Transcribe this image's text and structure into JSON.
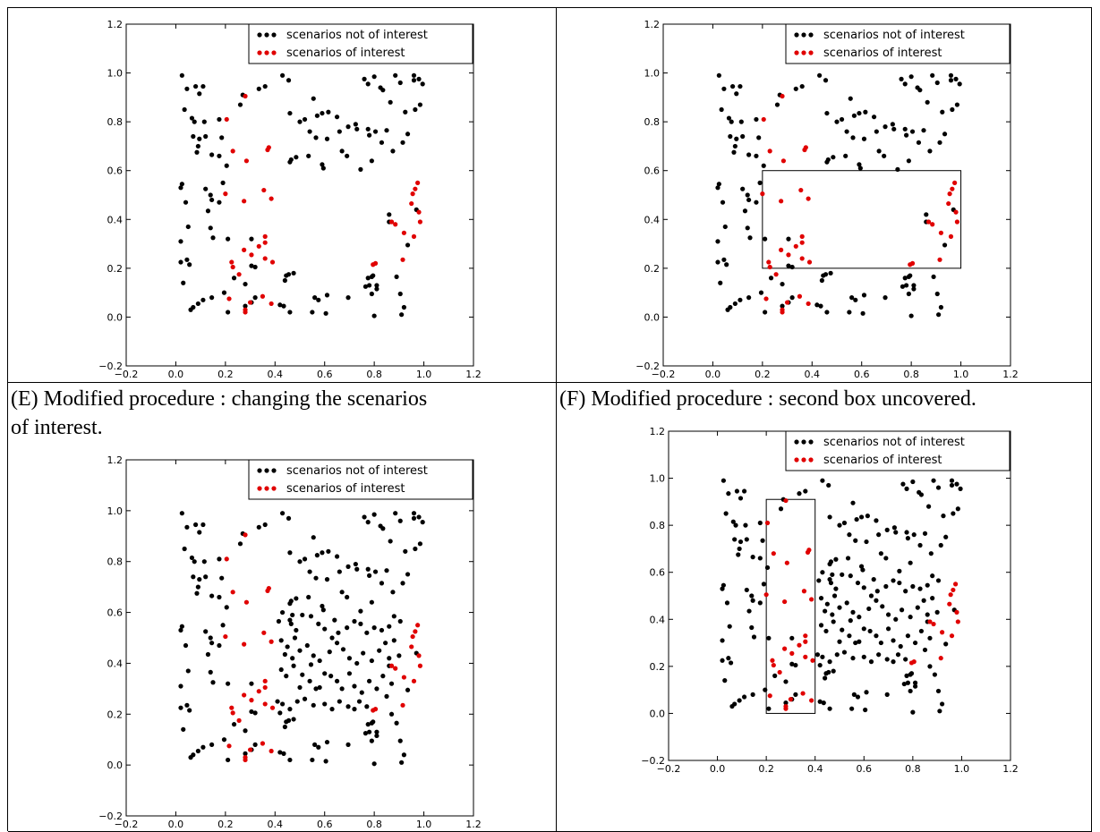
{
  "captions": {
    "e": [
      "(E) Modified procedure : changing the scenarios",
      "of interest."
    ],
    "f": "(F) Modified procedure : second box uncovered."
  },
  "legend": {
    "not_interest": "scenarios not of interest",
    "interest": "scenarios of interest"
  },
  "colors": {
    "not_interest": "#000000",
    "interest": "#e00000"
  },
  "ticks": {
    "x": [
      "−0.2",
      "0.0",
      "0.2",
      "0.4",
      "0.6",
      "0.8",
      "1.0",
      "1.2"
    ],
    "y": [
      "−0.2",
      "0.0",
      "0.2",
      "0.4",
      "0.6",
      "0.8",
      "1.0",
      "1.2"
    ]
  },
  "chart_data": [
    {
      "type": "scatter",
      "panel": "top-left",
      "xlim": [
        -0.2,
        1.2
      ],
      "ylim": [
        -0.2,
        1.2
      ],
      "legend_position": "top-right",
      "points": "plain",
      "boxes": []
    },
    {
      "type": "scatter",
      "panel": "top-right",
      "xlim": [
        -0.2,
        1.2
      ],
      "ylim": [
        -0.2,
        1.2
      ],
      "legend_position": "top-right",
      "points": "plain",
      "boxes": [
        {
          "x0": 0.2,
          "x1": 1.0,
          "y0": 0.2,
          "y1": 0.6
        }
      ]
    },
    {
      "type": "scatter",
      "panel": "E",
      "xlim": [
        -0.2,
        1.2
      ],
      "ylim": [
        -0.2,
        1.2
      ],
      "legend_position": "top-right",
      "points": "full",
      "boxes": []
    },
    {
      "type": "scatter",
      "panel": "F",
      "xlim": [
        -0.2,
        1.2
      ],
      "ylim": [
        -0.2,
        1.2
      ],
      "legend_position": "top-right",
      "points": "full",
      "boxes": [
        {
          "x0": 0.2,
          "x1": 0.4,
          "y0": 0.0,
          "y1": 0.91
        }
      ]
    }
  ],
  "point_sets": {
    "interest": [
      [
        0.28,
        0.905
      ],
      [
        0.205,
        0.81
      ],
      [
        0.23,
        0.68
      ],
      [
        0.285,
        0.64
      ],
      [
        0.375,
        0.695
      ],
      [
        0.37,
        0.685
      ],
      [
        0.2,
        0.505
      ],
      [
        0.275,
        0.475
      ],
      [
        0.355,
        0.52
      ],
      [
        0.385,
        0.485
      ],
      [
        0.975,
        0.55
      ],
      [
        0.965,
        0.525
      ],
      [
        0.955,
        0.505
      ],
      [
        0.95,
        0.465
      ],
      [
        0.98,
        0.43
      ],
      [
        0.985,
        0.39
      ],
      [
        0.885,
        0.38
      ],
      [
        0.87,
        0.39
      ],
      [
        0.96,
        0.33
      ],
      [
        0.92,
        0.345
      ],
      [
        0.36,
        0.33
      ],
      [
        0.36,
        0.305
      ],
      [
        0.335,
        0.29
      ],
      [
        0.275,
        0.275
      ],
      [
        0.305,
        0.255
      ],
      [
        0.36,
        0.24
      ],
      [
        0.39,
        0.225
      ],
      [
        0.225,
        0.225
      ],
      [
        0.23,
        0.205
      ],
      [
        0.805,
        0.22
      ],
      [
        0.795,
        0.215
      ],
      [
        0.915,
        0.235
      ],
      [
        0.255,
        0.175
      ],
      [
        0.215,
        0.075
      ],
      [
        0.35,
        0.085
      ],
      [
        0.385,
        0.055
      ],
      [
        0.28,
        0.02
      ],
      [
        0.3,
        0.06
      ],
      [
        0.28,
        0.03
      ]
    ],
    "plain": [
      [
        0.025,
        0.99
      ],
      [
        0.045,
        0.935
      ],
      [
        0.08,
        0.945
      ],
      [
        0.11,
        0.945
      ],
      [
        0.095,
        0.915
      ],
      [
        0.035,
        0.85
      ],
      [
        0.065,
        0.815
      ],
      [
        0.075,
        0.8
      ],
      [
        0.115,
        0.8
      ],
      [
        0.175,
        0.81
      ],
      [
        0.07,
        0.74
      ],
      [
        0.095,
        0.73
      ],
      [
        0.12,
        0.74
      ],
      [
        0.185,
        0.735
      ],
      [
        0.09,
        0.7
      ],
      [
        0.085,
        0.675
      ],
      [
        0.145,
        0.665
      ],
      [
        0.175,
        0.66
      ],
      [
        0.205,
        0.62
      ],
      [
        0.19,
        0.55
      ],
      [
        0.025,
        0.545
      ],
      [
        0.02,
        0.53
      ],
      [
        0.04,
        0.47
      ],
      [
        0.12,
        0.525
      ],
      [
        0.14,
        0.5
      ],
      [
        0.145,
        0.48
      ],
      [
        0.175,
        0.47
      ],
      [
        0.13,
        0.435
      ],
      [
        0.05,
        0.37
      ],
      [
        0.14,
        0.365
      ],
      [
        0.15,
        0.325
      ],
      [
        0.02,
        0.31
      ],
      [
        0.02,
        0.225
      ],
      [
        0.045,
        0.235
      ],
      [
        0.055,
        0.215
      ],
      [
        0.03,
        0.14
      ],
      [
        0.21,
        0.32
      ],
      [
        0.305,
        0.32
      ],
      [
        0.305,
        0.21
      ],
      [
        0.235,
        0.16
      ],
      [
        0.28,
        0.135
      ],
      [
        0.195,
        0.1
      ],
      [
        0.145,
        0.08
      ],
      [
        0.11,
        0.07
      ],
      [
        0.06,
        0.03
      ],
      [
        0.07,
        0.04
      ],
      [
        0.09,
        0.055
      ],
      [
        0.305,
        0.06
      ],
      [
        0.32,
        0.08
      ],
      [
        0.28,
        0.045
      ],
      [
        0.21,
        0.02
      ],
      [
        0.32,
        0.205
      ],
      [
        0.26,
        0.87
      ],
      [
        0.27,
        0.91
      ],
      [
        0.335,
        0.935
      ],
      [
        0.36,
        0.945
      ],
      [
        0.43,
        0.99
      ],
      [
        0.455,
        0.97
      ],
      [
        0.46,
        0.835
      ],
      [
        0.5,
        0.8
      ],
      [
        0.52,
        0.81
      ],
      [
        0.54,
        0.76
      ],
      [
        0.565,
        0.735
      ],
      [
        0.59,
        0.835
      ],
      [
        0.615,
        0.84
      ],
      [
        0.555,
        0.895
      ],
      [
        0.57,
        0.825
      ],
      [
        0.695,
        0.78
      ],
      [
        0.73,
        0.77
      ],
      [
        0.775,
        0.77
      ],
      [
        0.78,
        0.745
      ],
      [
        0.805,
        0.76
      ],
      [
        0.85,
        0.765
      ],
      [
        0.865,
        0.88
      ],
      [
        0.76,
        0.975
      ],
      [
        0.775,
        0.955
      ],
      [
        0.8,
        0.985
      ],
      [
        0.825,
        0.94
      ],
      [
        0.835,
        0.93
      ],
      [
        0.885,
        0.99
      ],
      [
        0.905,
        0.96
      ],
      [
        0.925,
        0.84
      ],
      [
        0.96,
        0.97
      ],
      [
        0.96,
        0.99
      ],
      [
        0.98,
        0.975
      ],
      [
        0.995,
        0.955
      ],
      [
        0.985,
        0.87
      ],
      [
        0.965,
        0.85
      ],
      [
        0.935,
        0.75
      ],
      [
        0.915,
        0.715
      ],
      [
        0.875,
        0.68
      ],
      [
        0.83,
        0.715
      ],
      [
        0.79,
        0.64
      ],
      [
        0.745,
        0.605
      ],
      [
        0.67,
        0.68
      ],
      [
        0.66,
        0.76
      ],
      [
        0.61,
        0.73
      ],
      [
        0.595,
        0.61
      ],
      [
        0.59,
        0.625
      ],
      [
        0.535,
        0.66
      ],
      [
        0.485,
        0.655
      ],
      [
        0.465,
        0.645
      ],
      [
        0.46,
        0.635
      ],
      [
        0.65,
        0.82
      ],
      [
        0.69,
        0.66
      ],
      [
        0.725,
        0.79
      ],
      [
        0.44,
        0.15
      ],
      [
        0.455,
        0.175
      ],
      [
        0.445,
        0.17
      ],
      [
        0.475,
        0.18
      ],
      [
        0.46,
        0.02
      ],
      [
        0.42,
        0.05
      ],
      [
        0.575,
        0.07
      ],
      [
        0.56,
        0.08
      ],
      [
        0.61,
        0.09
      ],
      [
        0.55,
        0.02
      ],
      [
        0.605,
        0.015
      ],
      [
        0.695,
        0.08
      ],
      [
        0.775,
        0.16
      ],
      [
        0.78,
        0.13
      ],
      [
        0.79,
        0.165
      ],
      [
        0.81,
        0.13
      ],
      [
        0.81,
        0.115
      ],
      [
        0.79,
        0.095
      ],
      [
        0.8,
        0.005
      ],
      [
        0.86,
        0.42
      ],
      [
        0.86,
        0.39
      ],
      [
        0.905,
        0.095
      ],
      [
        0.92,
        0.04
      ],
      [
        0.91,
        0.01
      ],
      [
        0.89,
        0.165
      ],
      [
        0.935,
        0.295
      ],
      [
        0.97,
        0.44
      ],
      [
        0.765,
        0.125
      ],
      [
        0.795,
        0.17
      ],
      [
        0.435,
        0.045
      ]
    ],
    "extra": [
      [
        0.415,
        0.565
      ],
      [
        0.43,
        0.6
      ],
      [
        0.46,
        0.57
      ],
      [
        0.465,
        0.555
      ],
      [
        0.485,
        0.53
      ],
      [
        0.48,
        0.5
      ],
      [
        0.51,
        0.59
      ],
      [
        0.545,
        0.585
      ],
      [
        0.575,
        0.555
      ],
      [
        0.6,
        0.535
      ],
      [
        0.64,
        0.57
      ],
      [
        0.655,
        0.52
      ],
      [
        0.69,
        0.54
      ],
      [
        0.72,
        0.565
      ],
      [
        0.745,
        0.555
      ],
      [
        0.77,
        0.52
      ],
      [
        0.8,
        0.54
      ],
      [
        0.83,
        0.53
      ],
      [
        0.86,
        0.545
      ],
      [
        0.88,
        0.585
      ],
      [
        0.905,
        0.565
      ],
      [
        0.425,
        0.49
      ],
      [
        0.45,
        0.465
      ],
      [
        0.44,
        0.435
      ],
      [
        0.47,
        0.42
      ],
      [
        0.5,
        0.45
      ],
      [
        0.53,
        0.47
      ],
      [
        0.555,
        0.43
      ],
      [
        0.58,
        0.41
      ],
      [
        0.62,
        0.445
      ],
      [
        0.65,
        0.48
      ],
      [
        0.675,
        0.455
      ],
      [
        0.7,
        0.42
      ],
      [
        0.73,
        0.4
      ],
      [
        0.755,
        0.44
      ],
      [
        0.79,
        0.41
      ],
      [
        0.82,
        0.45
      ],
      [
        0.845,
        0.48
      ],
      [
        0.9,
        0.43
      ],
      [
        0.425,
        0.375
      ],
      [
        0.445,
        0.35
      ],
      [
        0.475,
        0.39
      ],
      [
        0.51,
        0.355
      ],
      [
        0.54,
        0.33
      ],
      [
        0.565,
        0.3
      ],
      [
        0.58,
        0.305
      ],
      [
        0.6,
        0.36
      ],
      [
        0.625,
        0.35
      ],
      [
        0.65,
        0.33
      ],
      [
        0.67,
        0.3
      ],
      [
        0.7,
        0.36
      ],
      [
        0.72,
        0.31
      ],
      [
        0.75,
        0.285
      ],
      [
        0.78,
        0.33
      ],
      [
        0.81,
        0.3
      ],
      [
        0.835,
        0.35
      ],
      [
        0.87,
        0.32
      ],
      [
        0.43,
        0.24
      ],
      [
        0.46,
        0.22
      ],
      [
        0.49,
        0.25
      ],
      [
        0.52,
        0.26
      ],
      [
        0.555,
        0.235
      ],
      [
        0.6,
        0.24
      ],
      [
        0.63,
        0.22
      ],
      [
        0.66,
        0.25
      ],
      [
        0.695,
        0.23
      ],
      [
        0.72,
        0.22
      ],
      [
        0.74,
        0.25
      ],
      [
        0.77,
        0.23
      ],
      [
        0.85,
        0.27
      ],
      [
        0.87,
        0.2
      ],
      [
        0.42,
        0.205
      ],
      [
        0.41,
        0.25
      ],
      [
        0.5,
        0.305
      ],
      [
        0.545,
        0.395
      ],
      [
        0.63,
        0.5
      ],
      [
        0.47,
        0.59
      ],
      [
        0.88,
        0.49
      ]
    ]
  }
}
